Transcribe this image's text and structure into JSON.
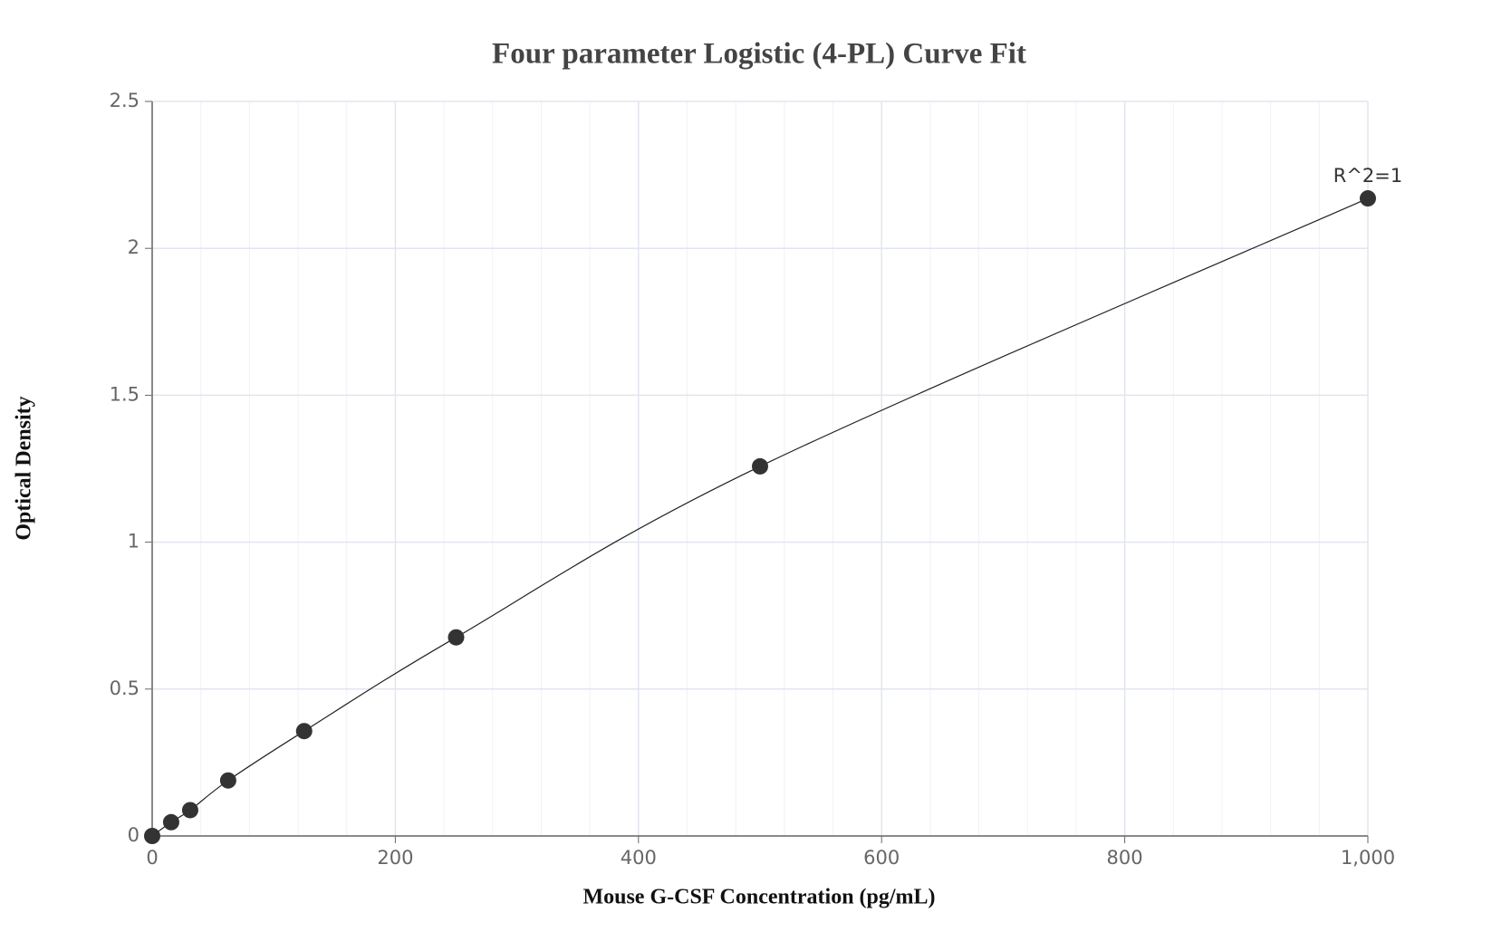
{
  "chart_data": {
    "type": "scatter-line",
    "title": "Four parameter Logistic (4-PL) Curve Fit",
    "x_label": "Mouse G-CSF Concentration (pg/mL)",
    "y_label": "Optical Density",
    "x": [
      0,
      15.6,
      31.25,
      62.5,
      125,
      250,
      500,
      1000
    ],
    "values": [
      0,
      0.047,
      0.088,
      0.189,
      0.357,
      0.676,
      1.258,
      2.17
    ],
    "color": "#333333",
    "line_color": "#222222",
    "annotation": "R^2=1",
    "xlim": [
      0,
      1000
    ],
    "xticks": [
      0,
      200,
      400,
      600,
      800,
      {
        "value": 1000,
        "label": "1,000"
      }
    ],
    "ylim": [
      0,
      2.5
    ],
    "yticks": [
      0,
      0.5,
      1,
      1.5,
      2,
      2.5
    ],
    "grid": true,
    "minor_grid": true
  }
}
